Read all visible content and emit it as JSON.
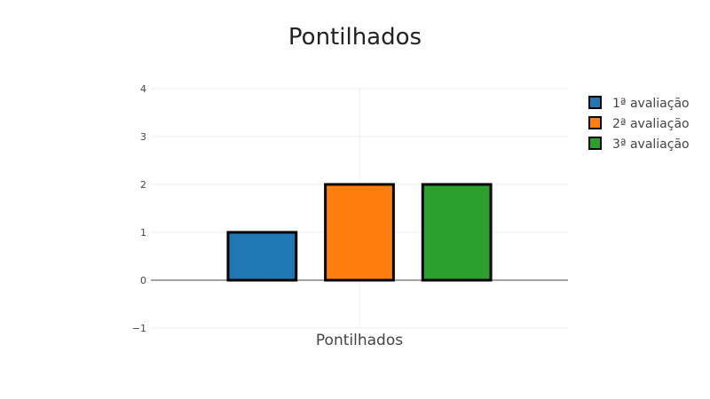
{
  "chart_data": {
    "type": "bar",
    "title": "Pontilhados",
    "xlabel": "",
    "ylabel": "",
    "categories": [
      "Pontilhados"
    ],
    "series": [
      {
        "name": "1ª avaliação",
        "values": [
          1
        ],
        "color": "#1f77b4"
      },
      {
        "name": "2ª avaliação",
        "values": [
          2
        ],
        "color": "#ff7f0e"
      },
      {
        "name": "3ª avaliação",
        "values": [
          2
        ],
        "color": "#2ca02c"
      }
    ],
    "ylim": [
      -1,
      4
    ],
    "yticks": [
      -1,
      0,
      1,
      2,
      3,
      4
    ],
    "ytick_labels": [
      "−1",
      "0",
      "1",
      "2",
      "3",
      "4"
    ],
    "grid": true,
    "legend_position": "top-right",
    "bar_outline_color": "#000000"
  }
}
